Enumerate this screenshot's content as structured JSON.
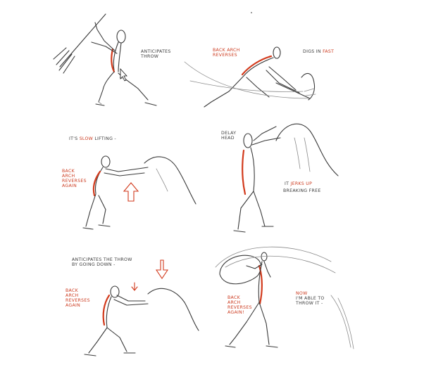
{
  "notes": {
    "anticipates_throw": "ANTICIPATES THROW",
    "back_arch_reverses": "BACK ARCH REVERSES",
    "digs_in_fast_prefix": "DIGS IN ",
    "digs_in_fast_emph": "FAST",
    "slow_lifting_prefix": "IT'S ",
    "slow_lifting_emph": "SLOW",
    "slow_lifting_suffix": " LIFTING -",
    "back_arch_reverses_again_1": "BACK ARCH REVERSES AGAIN",
    "delay_head": "DELAY HEAD",
    "it_jerks_up_prefix": "IT ",
    "it_jerks_up_emph": "JERKS UP",
    "breaking_free": "BREAKING FREE",
    "anticipates_down": "ANTICIPATES THE THROW BY GOING DOWN -",
    "back_arch_reverses_again_2": "BACK ARCH REVERSES AGAIN",
    "back_arch_reverses_again_3": "BACK ARCH REVERSES AGAIN!",
    "now_able_prefix": "NOW",
    "now_able_suffix": "I'M ABLE TO THROW IT -"
  },
  "colors": {
    "paper": "#ffffff",
    "pencil": "#3a3a3a",
    "accent_red": "#d23a1c"
  }
}
